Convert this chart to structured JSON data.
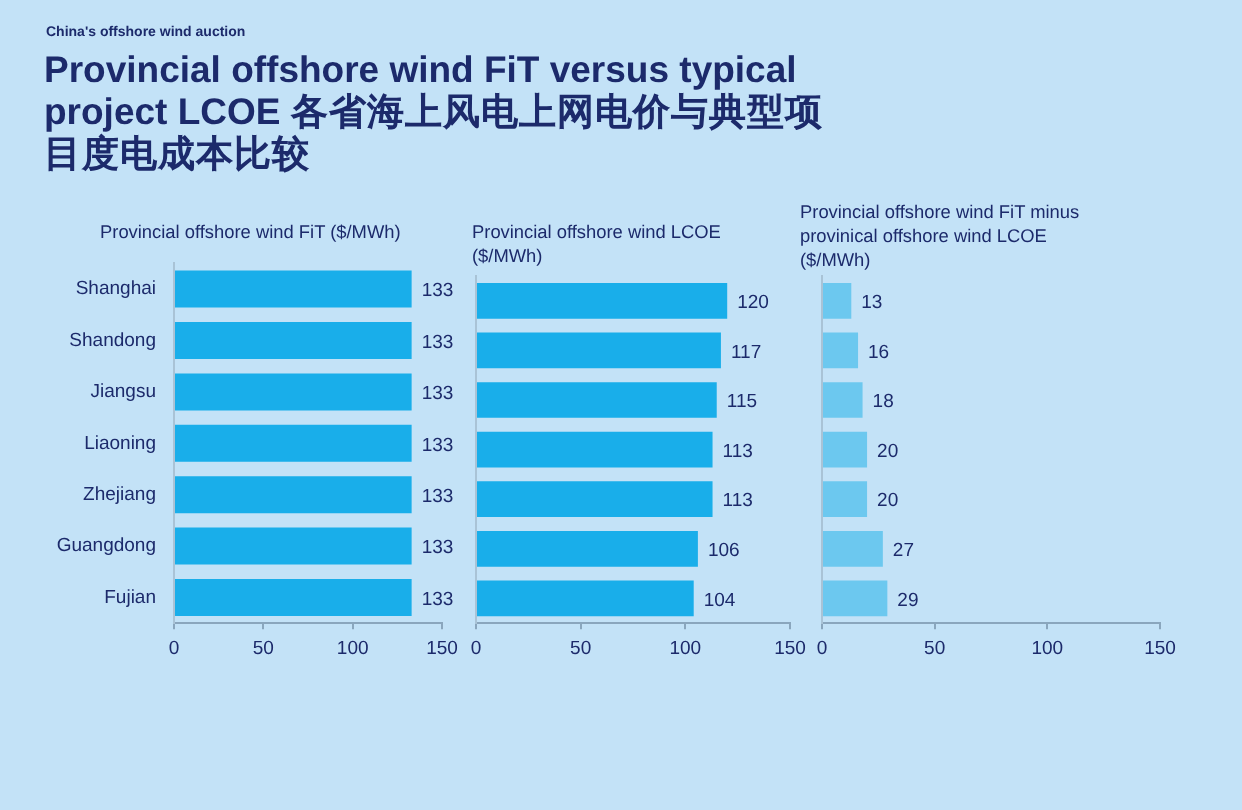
{
  "chart_data": [
    {
      "type": "other",
      "title": "Provincial offshore wind FiT versus typical project LCOE 各省海上风电上网电价与典型项目度电成本比较",
      "annotations": [
        "China's offshore wind auction"
      ]
    },
    {
      "type": "bar",
      "orientation": "horizontal",
      "title": "Provincial offshore wind FiT ($/MWh)",
      "categories": [
        "Shanghai",
        "Shandong",
        "Jiangsu",
        "Liaoning",
        "Zhejiang",
        "Guangdong",
        "Fujian"
      ],
      "values": [
        133,
        133,
        133,
        133,
        133,
        133,
        133
      ],
      "color": "#19aeea",
      "xlim": [
        0,
        150
      ],
      "xticks": [
        0,
        50,
        100,
        150
      ],
      "data_labels": true
    },
    {
      "type": "bar",
      "orientation": "horizontal",
      "title": "Provincial offshore wind LCOE ($/MWh)",
      "categories": [
        null,
        null,
        null,
        null,
        null,
        null,
        null
      ],
      "values": [
        120,
        117,
        115,
        113,
        113,
        106,
        104
      ],
      "color": "#19aeea",
      "xlim": [
        0,
        150
      ],
      "xticks": [
        0,
        50,
        100,
        150
      ],
      "data_labels": true
    },
    {
      "type": "bar",
      "orientation": "horizontal",
      "title": "Provincial offshore wind FiT minus provinical offshore wind LCOE ($/MWh)",
      "categories": [
        null,
        null,
        null,
        null,
        null,
        null,
        null
      ],
      "values": [
        13,
        16,
        18,
        20,
        20,
        27,
        29
      ],
      "color": "#6cc8ef",
      "xlim": [
        0,
        150
      ],
      "xticks": [
        0,
        50,
        100,
        150
      ],
      "data_labels": true
    }
  ]
}
